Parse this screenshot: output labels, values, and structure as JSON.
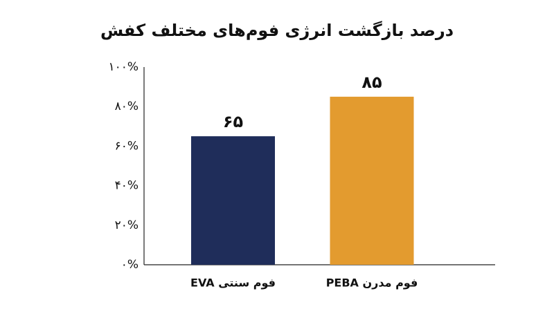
{
  "chart_data": {
    "type": "bar",
    "title": "درصد بازگشت انرژی فوم‌های مختلف کفش",
    "categories": [
      "فوم سنتی EVA",
      "فوم مدرن PEBA"
    ],
    "values": [
      65,
      85
    ],
    "value_labels": [
      "۶۵",
      "۸۵"
    ],
    "colors": [
      "#1f2d5a",
      "#e39b2f"
    ],
    "ylim": [
      0,
      100
    ],
    "yticks": [
      {
        "value": 0,
        "label": "۰%"
      },
      {
        "value": 20,
        "label": "۲۰%"
      },
      {
        "value": 40,
        "label": "۴۰%"
      },
      {
        "value": 60,
        "label": "۶۰%"
      },
      {
        "value": 80,
        "label": "۸۰%"
      },
      {
        "value": 100,
        "label": "۱۰۰%"
      }
    ],
    "grid": false
  }
}
